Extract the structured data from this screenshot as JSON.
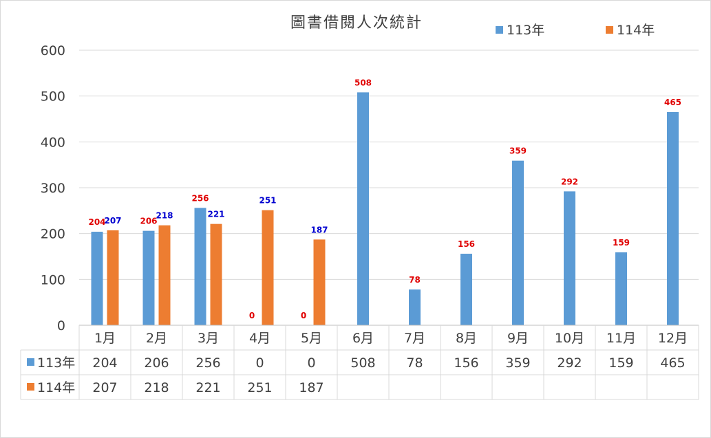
{
  "chart_data": {
    "type": "bar",
    "title": "圖書借閱人次統計",
    "categories": [
      "1月",
      "2月",
      "3月",
      "4月",
      "5月",
      "6月",
      "7月",
      "8月",
      "9月",
      "10月",
      "11月",
      "12月"
    ],
    "series": [
      {
        "name": "113年",
        "color": "#5b9bd5",
        "values": [
          204,
          206,
          256,
          0,
          0,
          508,
          78,
          156,
          359,
          292,
          159,
          465
        ],
        "display": [
          "204",
          "206",
          "256",
          "0",
          "0",
          "508",
          "78",
          "156",
          "359",
          "292",
          "159",
          "465"
        ]
      },
      {
        "name": "114年",
        "color": "#ed7d31",
        "values": [
          207,
          218,
          221,
          251,
          187,
          null,
          null,
          null,
          null,
          null,
          null,
          null
        ],
        "display": [
          "207",
          "218",
          "221",
          "251",
          "187",
          "",
          "",
          "",
          "",
          "",
          "",
          ""
        ]
      }
    ],
    "yticks": [
      "0",
      "100",
      "200",
      "300",
      "400",
      "500",
      "600"
    ],
    "ylim": [
      0,
      600
    ],
    "grid": true,
    "legend": "top-right",
    "data_table": true,
    "label_colors": {
      "series_113": "#e00000",
      "series_114": "#0000d0"
    }
  }
}
